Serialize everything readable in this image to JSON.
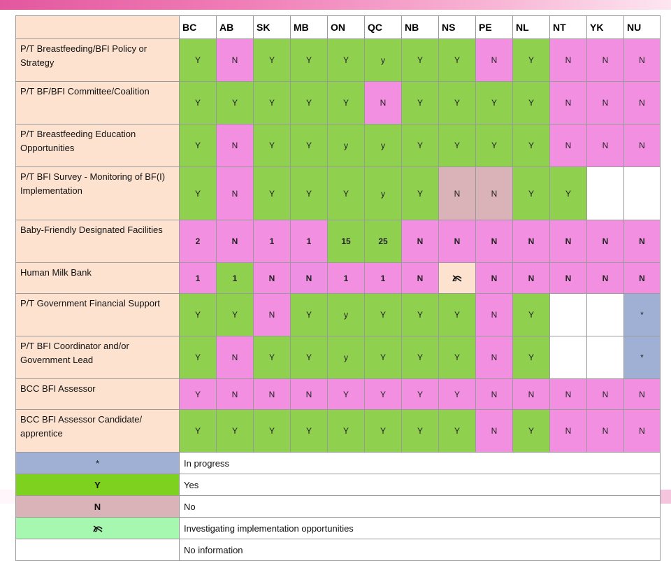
{
  "columns": [
    "BC",
    "AB",
    "SK",
    "MB",
    "ON",
    "QC",
    "NB",
    "NS",
    "PE",
    "NL",
    "NT",
    "YK",
    "NU"
  ],
  "rows": [
    {
      "label": "P/T Breastfeeding/BFI Policy or Strategy",
      "size": "tall",
      "values": [
        "Y",
        "N",
        "Y",
        "Y",
        "Y",
        "y",
        "Y",
        "Y",
        "N",
        "Y",
        "N",
        "N",
        "N"
      ],
      "colors": [
        "Y",
        "N",
        "Y",
        "Y",
        "Y",
        "Y",
        "Y",
        "Y",
        "N",
        "Y",
        "N",
        "N",
        "N"
      ]
    },
    {
      "label": "P/T  BF/BFI Committee/Coalition",
      "size": "tall",
      "values": [
        "Y",
        "Y",
        "Y",
        "Y",
        "Y",
        "N",
        "Y",
        "Y",
        "Y",
        "Y",
        "N",
        "N",
        "N"
      ],
      "colors": [
        "Y",
        "Y",
        "Y",
        "Y",
        "Y",
        "N",
        "Y",
        "Y",
        "Y",
        "Y",
        "N",
        "N",
        "N"
      ]
    },
    {
      "label": "P/T Breastfeeding Education Opportunities",
      "size": "tall",
      "values": [
        "Y",
        "N",
        "Y",
        "Y",
        "y",
        "y",
        "Y",
        "Y",
        "Y",
        "Y",
        "N",
        "N",
        "N"
      ],
      "colors": [
        "Y",
        "N",
        "Y",
        "Y",
        "Y",
        "Y",
        "Y",
        "Y",
        "Y",
        "Y",
        "N",
        "N",
        "N"
      ]
    },
    {
      "label": "P/T BFI Survey - Monitoring of BF(I) Implementation",
      "size": "xtall",
      "values": [
        "Y",
        "N",
        "Y",
        "Y",
        "Y",
        "y",
        "Y",
        "N",
        "N",
        "Y",
        "Y",
        "",
        ""
      ],
      "colors": [
        "Y",
        "N",
        "Y",
        "Y",
        "Y",
        "Y",
        "Y",
        "NB",
        "NB",
        "Y",
        "Y",
        "E",
        "E"
      ]
    },
    {
      "label": "Baby-Friendly  Designated Facilities",
      "size": "tall",
      "bold": true,
      "values": [
        "2",
        "N",
        "1",
        "1",
        "15",
        "25",
        "N",
        "N",
        "N",
        "N",
        "N",
        "N",
        "N"
      ],
      "colors": [
        "N",
        "N",
        "N",
        "N",
        "Y",
        "Y",
        "N",
        "N",
        "N",
        "N",
        "N",
        "N",
        "N"
      ]
    },
    {
      "label": "Human Milk Bank",
      "size": "short",
      "bold": true,
      "values": [
        "1",
        "1",
        "N",
        "N",
        "1",
        "1",
        "N",
        "",
        "N",
        "N",
        "N",
        "N",
        "N"
      ],
      "colors": [
        "N",
        "Y",
        "N",
        "M",
        "N",
        "N",
        "N",
        "I",
        "N",
        "N",
        "N",
        "N",
        "N"
      ]
    },
    {
      "label": "P/T Government Financial Support",
      "size": "tall",
      "values": [
        "Y",
        "Y",
        "N",
        "Y",
        "y",
        "Y",
        "Y",
        "Y",
        "N",
        "Y",
        "",
        "",
        "*"
      ],
      "colors": [
        "Y",
        "Y",
        "N",
        "Y",
        "Y",
        "Y",
        "Y",
        "Y",
        "N",
        "Y",
        "E",
        "E",
        "P"
      ]
    },
    {
      "label": "P/T BFI Coordinator and/or Government Lead",
      "size": "tall",
      "values": [
        "Y",
        "N",
        "Y",
        "Y",
        "y",
        "Y",
        "Y",
        "Y",
        "N",
        "Y",
        "",
        "",
        "*"
      ],
      "colors": [
        "Y",
        "N",
        "Y",
        "Y",
        "Y",
        "Y",
        "Y",
        "Y",
        "N",
        "Y",
        "E",
        "E",
        "P"
      ]
    },
    {
      "label": "BCC BFI Assessor",
      "size": "short",
      "values": [
        "Y",
        "N",
        "N",
        "N",
        "Y",
        "Y",
        "Y",
        "Y",
        "N",
        "N",
        "N",
        "N",
        "N"
      ],
      "colors": [
        "N",
        "N",
        "N",
        "N",
        "N",
        "N",
        "N",
        "N",
        "N",
        "N",
        "N",
        "N",
        "N"
      ]
    },
    {
      "label": "BCC BFI Assessor Candidate/ apprentice",
      "size": "tall",
      "values": [
        "Y",
        "Y",
        "Y",
        "Y",
        "Y",
        "Y",
        "Y",
        "Y",
        "N",
        "Y",
        "N",
        "N",
        "N"
      ],
      "colors": [
        "Y",
        "Y",
        "Y",
        "Y",
        "Y",
        "Y",
        "Y",
        "Y",
        "N",
        "Y",
        "N",
        "N",
        "N"
      ]
    }
  ],
  "inv_icon_cells": [
    [
      5,
      7
    ]
  ],
  "legend": [
    {
      "key": "*",
      "desc": "In progress",
      "style": "k-star"
    },
    {
      "key": "Y",
      "desc": "Yes",
      "style": "k-y"
    },
    {
      "key": "N",
      "desc": "No",
      "style": "k-n"
    },
    {
      "key": "",
      "desc": "Investigating implementation opportunities",
      "style": "k-inv",
      "icon": "investigating-icon"
    },
    {
      "key": "",
      "desc": "No information",
      "style": "k-none"
    }
  ],
  "colors": {
    "yes": "#8fd14f",
    "no": "#f38fe0",
    "no_legend": "#d9b3b8",
    "in_progress": "#9fb0d4",
    "investigating": "#a6f7b0",
    "label_bg": "#fde2d0"
  }
}
